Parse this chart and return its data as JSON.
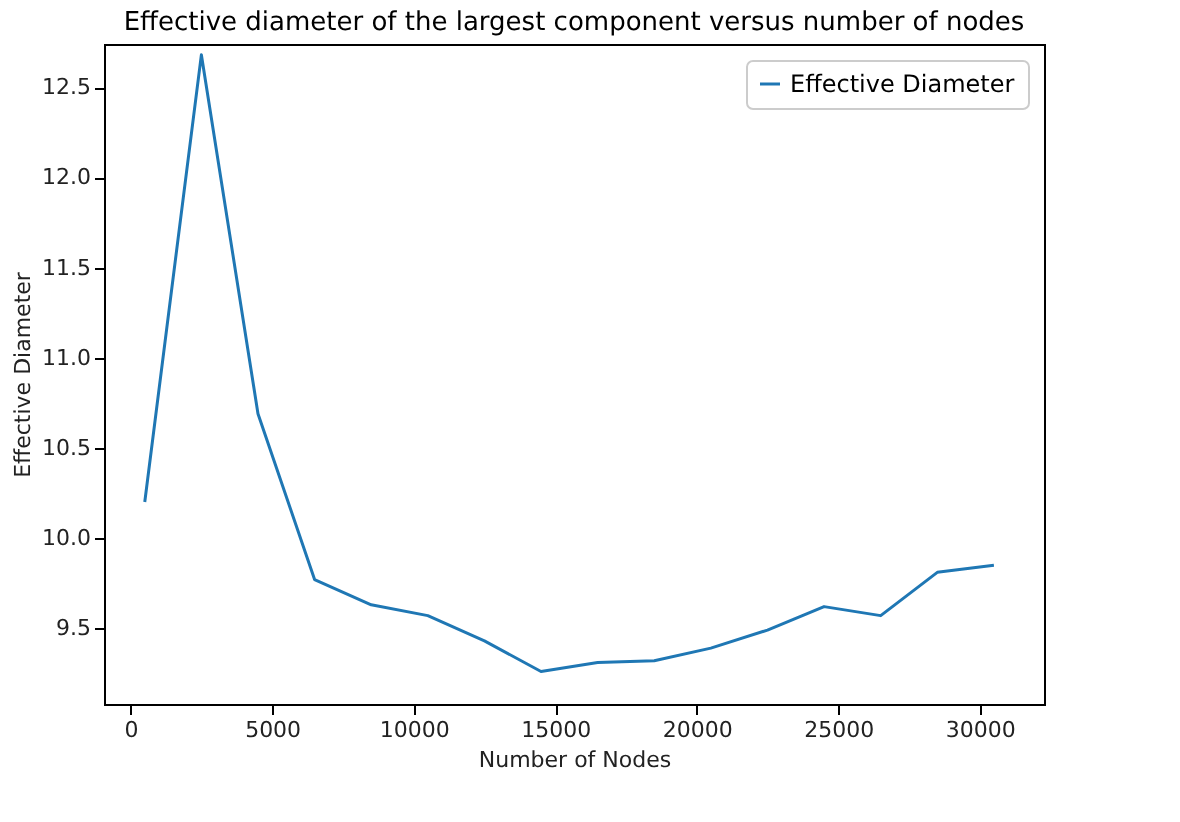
{
  "chart_data": {
    "type": "line",
    "title": "Effective diameter of the largest component versus number of nodes",
    "xlabel": "Number of Nodes",
    "ylabel": "Effective Diameter",
    "x": [
      500,
      2500,
      4500,
      6500,
      8500,
      10500,
      12500,
      14500,
      16500,
      18500,
      20500,
      22500,
      24500,
      26500,
      28500,
      30500
    ],
    "series": [
      {
        "name": "Effective Diameter",
        "color": "#1f77b4",
        "values": [
          10.2,
          12.68,
          10.69,
          9.77,
          9.63,
          9.57,
          9.43,
          9.26,
          9.31,
          9.32,
          9.39,
          9.49,
          9.62,
          9.57,
          9.81,
          9.85
        ]
      }
    ],
    "xlim": [
      -940,
      32270
    ],
    "ylim": [
      9.08,
      12.74
    ],
    "xticks": [
      0,
      5000,
      10000,
      15000,
      20000,
      25000,
      30000
    ],
    "yticks": [
      9.5,
      {
        "value": 10,
        "label": "10.0"
      },
      10.5,
      {
        "value": 11,
        "label": "11.0"
      },
      11.5,
      {
        "value": 12,
        "label": "12.0"
      },
      12.5
    ],
    "legend": "top right",
    "grid": false
  }
}
